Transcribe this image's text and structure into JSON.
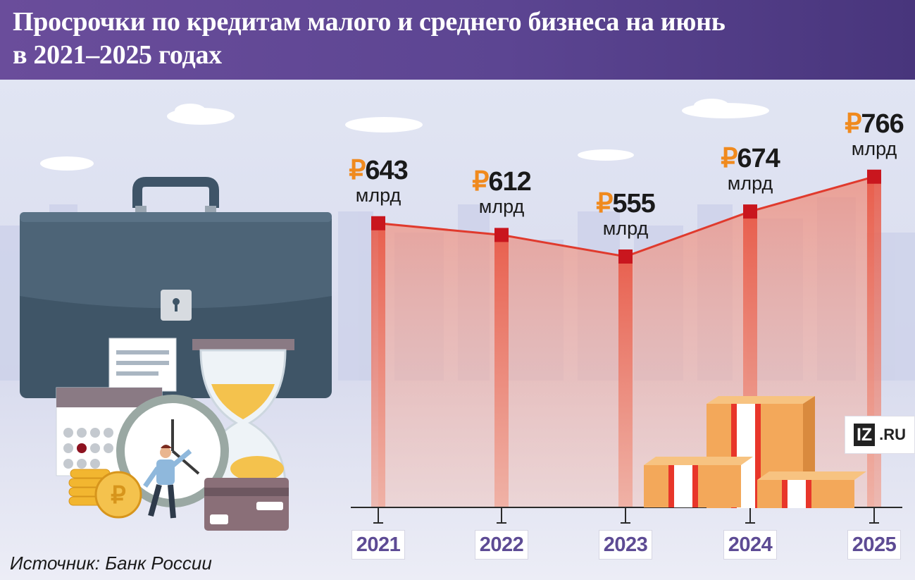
{
  "header": {
    "title_line1": "Просрочки по кредитам малого и среднего бизнеса на июнь",
    "title_line2": "в 2021–2025 годах"
  },
  "source": "Источник: Банк России",
  "logo": {
    "mark": "IZ",
    "domain": ".RU"
  },
  "colors": {
    "header_bg": "#5c4592",
    "line": "#e03a2d",
    "marker": "#c9161e",
    "currency": "#f08a1e",
    "year_text": "#5d4b94"
  },
  "chart_data": {
    "type": "line",
    "title": "Просрочки по кредитам малого и среднего бизнеса на июнь в 2021–2025 годах",
    "categories": [
      "2021",
      "2022",
      "2023",
      "2024",
      "2025"
    ],
    "values": [
      643,
      612,
      555,
      674,
      766
    ],
    "currency_symbol": "₽",
    "unit": "млрд",
    "labels": [
      {
        "currency": "₽",
        "number": "643",
        "unit": "млрд"
      },
      {
        "currency": "₽",
        "number": "612",
        "unit": "млрд"
      },
      {
        "currency": "₽",
        "number": "555",
        "unit": "млрд"
      },
      {
        "currency": "₽",
        "number": "674",
        "unit": "млрд"
      },
      {
        "currency": "₽",
        "number": "766",
        "unit": "млрд"
      }
    ],
    "xlabel": "",
    "ylabel": "",
    "grid": false,
    "legend": "none"
  },
  "illustration": [
    "briefcase",
    "lock-icon",
    "receipt-icon",
    "hourglass-icon",
    "calendar-icon",
    "clock-icon",
    "coins-icon",
    "ruble-coin-icon",
    "credit-card-icon",
    "person",
    "cash-stacks"
  ]
}
